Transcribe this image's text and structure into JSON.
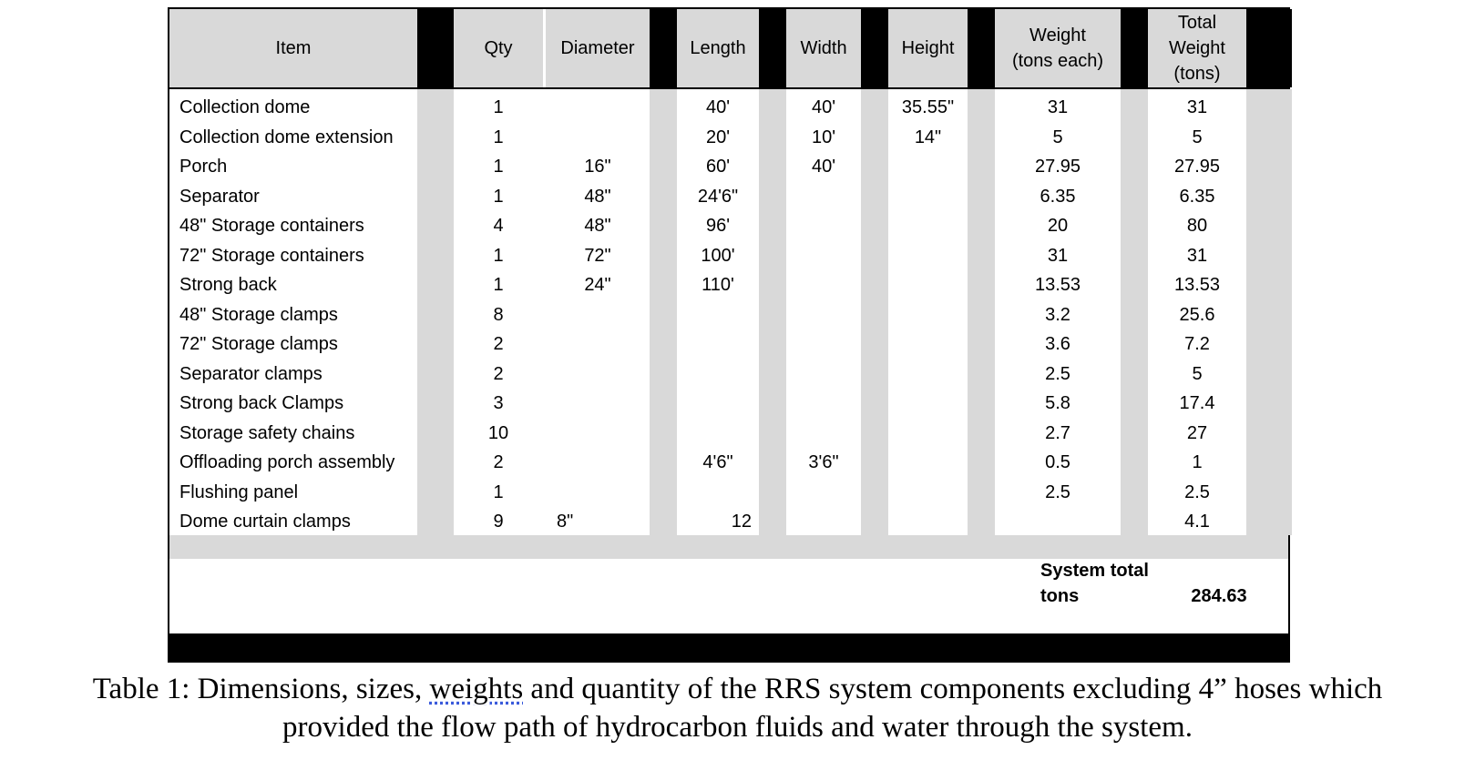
{
  "table": {
    "headers": [
      "Item",
      "Qty",
      "Diameter",
      "Length",
      "Width",
      "Height",
      "Weight (tons each)",
      "Total Weight (tons)"
    ],
    "header_lines": {
      "weight": [
        "Weight",
        "(tons each)"
      ],
      "total": [
        "Total",
        "Weight",
        "(tons)"
      ]
    },
    "rows": [
      [
        "Collection dome",
        "1",
        "",
        "40'",
        "40'",
        "35.55\"",
        "31",
        "31"
      ],
      [
        "Collection dome extension",
        "1",
        "",
        "20'",
        "10'",
        "14\"",
        "5",
        "5"
      ],
      [
        "Porch",
        "1",
        "16\"",
        "60'",
        "40'",
        "",
        "27.95",
        "27.95"
      ],
      [
        "Separator",
        "1",
        "48\"",
        "24'6\"",
        "",
        "",
        "6.35",
        "6.35"
      ],
      [
        "48\" Storage containers",
        "4",
        "48\"",
        "96'",
        "",
        "",
        "20",
        "80"
      ],
      [
        "72\" Storage containers",
        "1",
        "72\"",
        "100'",
        "",
        "",
        "31",
        "31"
      ],
      [
        "Strong back",
        "1",
        "24\"",
        "110'",
        "",
        "",
        "13.53",
        "13.53"
      ],
      [
        "48\" Storage clamps",
        "8",
        "",
        "",
        "",
        "",
        "3.2",
        "25.6"
      ],
      [
        "72\" Storage clamps",
        "2",
        "",
        "",
        "",
        "",
        "3.6",
        "7.2"
      ],
      [
        "Separator clamps",
        "2",
        "",
        "",
        "",
        "",
        "2.5",
        "5"
      ],
      [
        "Strong back Clamps",
        "3",
        "",
        "",
        "",
        "",
        "5.8",
        "17.4"
      ],
      [
        "Storage safety chains",
        "10",
        "",
        "",
        "",
        "",
        "2.7",
        "27"
      ],
      [
        "Offloading porch assembly",
        "2",
        "",
        "4'6\"",
        "3'6\"",
        "",
        "0.5",
        "1"
      ],
      [
        "Flushing panel",
        "1",
        "",
        "",
        "",
        "",
        "2.5",
        "2.5"
      ],
      [
        "Dome curtain clamps",
        "9",
        "8\"",
        "12",
        "",
        "",
        "",
        "4.1"
      ]
    ],
    "total_label_lines": [
      "System total",
      "tons"
    ],
    "total_value": "284.63"
  },
  "caption": {
    "prefix": "Table 1: Dimensions, sizes, ",
    "underlined": "weights",
    "line1_rest": " and quantity of the RRS system components excluding 4” hoses which",
    "line2": "provided the flow path of hydrocarbon fluids and water through the system."
  }
}
